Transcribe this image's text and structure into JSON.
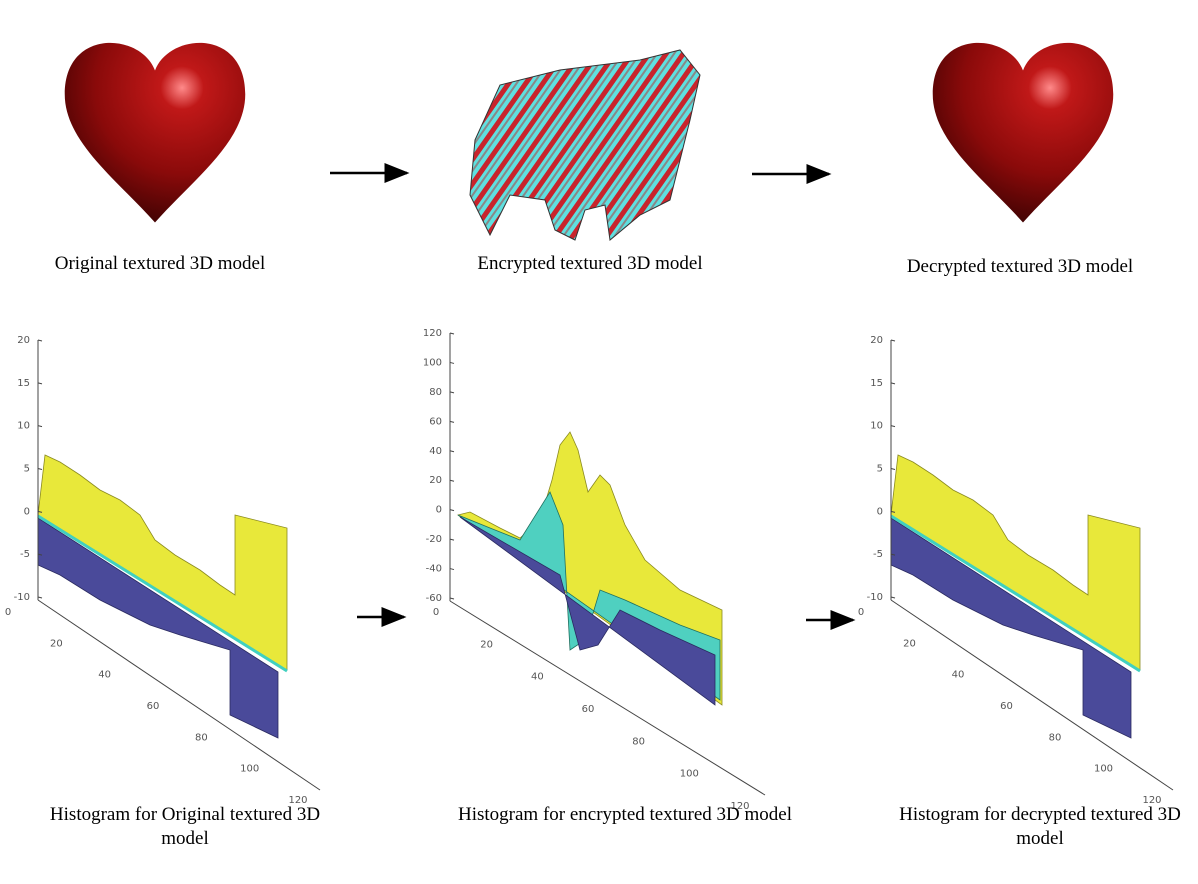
{
  "top_panels": [
    {
      "caption": "Original textured 3D model"
    },
    {
      "caption": "Encrypted textured 3D model"
    },
    {
      "caption": "Decrypted textured 3D model"
    }
  ],
  "histograms": [
    {
      "caption": "Histogram for Original textured 3D model",
      "yticks": [
        20,
        15,
        10,
        5,
        0,
        -5,
        -10
      ],
      "xticks": [
        0,
        20,
        40,
        60,
        80,
        100,
        120
      ]
    },
    {
      "caption": "Histogram for encrypted textured 3D model",
      "yticks": [
        120,
        100,
        80,
        60,
        40,
        20,
        0,
        -20,
        -40,
        -60
      ],
      "xticks": [
        0,
        20,
        40,
        60,
        80,
        100,
        120
      ]
    },
    {
      "caption": "Histogram for decrypted textured 3D model",
      "yticks": [
        20,
        15,
        10,
        5,
        0,
        -5,
        -10
      ],
      "xticks": [
        0,
        20,
        40,
        60,
        80,
        100,
        120
      ]
    }
  ]
}
